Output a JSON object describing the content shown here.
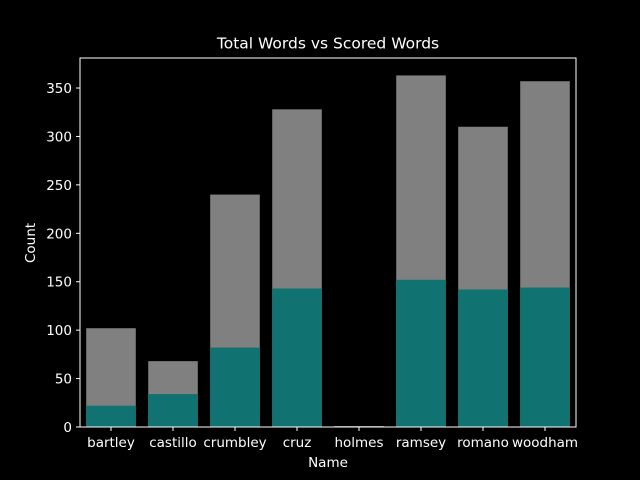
{
  "chart_data": {
    "type": "bar",
    "title": "Total Words vs Scored Words",
    "xlabel": "Name",
    "ylabel": "Count",
    "categories": [
      "bartley",
      "castillo",
      "crumbley",
      "cruz",
      "holmes",
      "ramsey",
      "romano",
      "woodham"
    ],
    "series": [
      {
        "values": [
          102,
          68,
          240,
          328,
          1,
          363,
          310,
          357
        ],
        "color": "#808080"
      },
      {
        "values": [
          22,
          34,
          82,
          143,
          0,
          152,
          142,
          144
        ],
        "color": "#117272"
      }
    ],
    "ylim": [
      0,
      381
    ],
    "yticks": [
      0,
      50,
      100,
      150,
      200,
      250,
      300,
      350
    ],
    "overlay": true,
    "grid": false,
    "background": "#000000",
    "foreground": "#ffffff"
  }
}
